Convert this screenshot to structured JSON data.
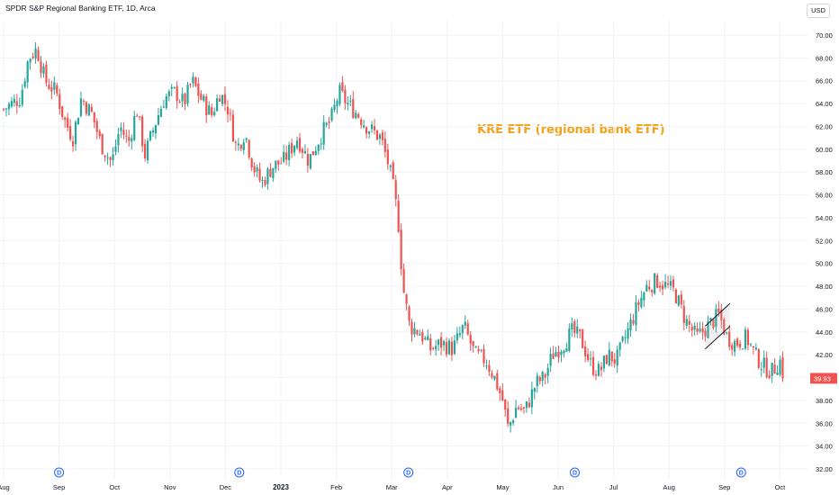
{
  "header": {
    "title": "SPDR S&P Regional Banking ETF, 1D, Arca",
    "currency": "USD"
  },
  "annotation": "KRE ETF (regional bank ETF)",
  "chart_data": {
    "type": "candlestick",
    "title": "SPDR S&P Regional Banking ETF, 1D, Arca",
    "ylim": [
      32,
      71
    ],
    "y_ticks": [
      "32.00",
      "34.00",
      "36.00",
      "38.00",
      "40.00",
      "42.00",
      "44.00",
      "46.00",
      "48.00",
      "50.00",
      "52.00",
      "54.00",
      "56.00",
      "58.00",
      "60.00",
      "62.00",
      "64.00",
      "66.00",
      "68.00",
      "70.00"
    ],
    "x_ticks": [
      {
        "label": "Aug",
        "month": 0,
        "bold": false
      },
      {
        "label": "Sep",
        "month": 1,
        "bold": false
      },
      {
        "label": "Oct",
        "month": 2,
        "bold": false
      },
      {
        "label": "Nov",
        "month": 3,
        "bold": false
      },
      {
        "label": "Dec",
        "month": 4,
        "bold": false
      },
      {
        "label": "2023",
        "month": 5,
        "bold": true
      },
      {
        "label": "Feb",
        "month": 6,
        "bold": false
      },
      {
        "label": "Mar",
        "month": 7,
        "bold": false
      },
      {
        "label": "Apr",
        "month": 8,
        "bold": false
      },
      {
        "label": "May",
        "month": 9,
        "bold": false
      },
      {
        "label": "Jun",
        "month": 10,
        "bold": false
      },
      {
        "label": "Jul",
        "month": 11,
        "bold": false
      },
      {
        "label": "Aug",
        "month": 12,
        "bold": false
      },
      {
        "label": "Sep",
        "month": 13,
        "bold": false
      },
      {
        "label": "Oct",
        "month": 14,
        "bold": false
      }
    ],
    "close_path": [
      {
        "t": 0.0,
        "v": 63.5
      },
      {
        "t": 0.3,
        "v": 64.5
      },
      {
        "t": 0.45,
        "v": 68.0
      },
      {
        "t": 0.6,
        "v": 68.8
      },
      {
        "t": 0.75,
        "v": 66.0
      },
      {
        "t": 0.95,
        "v": 65.0
      },
      {
        "t": 1.1,
        "v": 62.5
      },
      {
        "t": 1.25,
        "v": 61.0
      },
      {
        "t": 1.4,
        "v": 64.5
      },
      {
        "t": 1.6,
        "v": 63.0
      },
      {
        "t": 1.75,
        "v": 60.5
      },
      {
        "t": 1.95,
        "v": 58.8
      },
      {
        "t": 2.1,
        "v": 62.0
      },
      {
        "t": 2.25,
        "v": 60.5
      },
      {
        "t": 2.4,
        "v": 63.5
      },
      {
        "t": 2.55,
        "v": 59.5
      },
      {
        "t": 2.75,
        "v": 62.5
      },
      {
        "t": 2.9,
        "v": 64.5
      },
      {
        "t": 3.1,
        "v": 65.0
      },
      {
        "t": 3.25,
        "v": 64.0
      },
      {
        "t": 3.4,
        "v": 66.0
      },
      {
        "t": 3.55,
        "v": 64.5
      },
      {
        "t": 3.75,
        "v": 63.0
      },
      {
        "t": 3.9,
        "v": 65.0
      },
      {
        "t": 4.05,
        "v": 63.5
      },
      {
        "t": 4.2,
        "v": 60.0
      },
      {
        "t": 4.35,
        "v": 61.5
      },
      {
        "t": 4.5,
        "v": 58.5
      },
      {
        "t": 4.65,
        "v": 57.0
      },
      {
        "t": 4.85,
        "v": 58.5
      },
      {
        "t": 5.05,
        "v": 59.0
      },
      {
        "t": 5.3,
        "v": 61.0
      },
      {
        "t": 5.5,
        "v": 59.0
      },
      {
        "t": 5.75,
        "v": 61.5
      },
      {
        "t": 5.9,
        "v": 62.5
      },
      {
        "t": 6.05,
        "v": 65.0
      },
      {
        "t": 6.2,
        "v": 64.0
      },
      {
        "t": 6.4,
        "v": 63.0
      },
      {
        "t": 6.55,
        "v": 62.0
      },
      {
        "t": 6.8,
        "v": 61.0
      },
      {
        "t": 6.95,
        "v": 58.5
      },
      {
        "t": 7.05,
        "v": 56.0
      },
      {
        "t": 7.12,
        "v": 53.5
      },
      {
        "t": 7.2,
        "v": 48.0
      },
      {
        "t": 7.32,
        "v": 44.5
      },
      {
        "t": 7.5,
        "v": 44.0
      },
      {
        "t": 7.7,
        "v": 42.5
      },
      {
        "t": 7.9,
        "v": 43.0
      },
      {
        "t": 8.1,
        "v": 42.5
      },
      {
        "t": 8.3,
        "v": 44.5
      },
      {
        "t": 8.5,
        "v": 42.0
      },
      {
        "t": 8.7,
        "v": 41.5
      },
      {
        "t": 8.85,
        "v": 40.0
      },
      {
        "t": 9.0,
        "v": 38.0
      },
      {
        "t": 9.1,
        "v": 35.5
      },
      {
        "t": 9.25,
        "v": 37.5
      },
      {
        "t": 9.4,
        "v": 37.0
      },
      {
        "t": 9.6,
        "v": 39.5
      },
      {
        "t": 9.75,
        "v": 40.0
      },
      {
        "t": 9.9,
        "v": 42.0
      },
      {
        "t": 10.1,
        "v": 43.0
      },
      {
        "t": 10.25,
        "v": 44.0
      },
      {
        "t": 10.4,
        "v": 43.5
      },
      {
        "t": 10.6,
        "v": 41.0
      },
      {
        "t": 10.75,
        "v": 40.5
      },
      {
        "t": 10.9,
        "v": 42.0
      },
      {
        "t": 11.05,
        "v": 41.5
      },
      {
        "t": 11.25,
        "v": 44.0
      },
      {
        "t": 11.45,
        "v": 46.5
      },
      {
        "t": 11.6,
        "v": 48.0
      },
      {
        "t": 11.8,
        "v": 48.5
      },
      {
        "t": 11.95,
        "v": 48.0
      },
      {
        "t": 12.1,
        "v": 47.5
      },
      {
        "t": 12.3,
        "v": 45.0
      },
      {
        "t": 12.5,
        "v": 43.5
      },
      {
        "t": 12.7,
        "v": 44.5
      },
      {
        "t": 12.9,
        "v": 45.5
      },
      {
        "t": 13.05,
        "v": 43.5
      },
      {
        "t": 13.2,
        "v": 43.0
      },
      {
        "t": 13.4,
        "v": 43.5
      },
      {
        "t": 13.55,
        "v": 42.0
      },
      {
        "t": 13.7,
        "v": 41.0
      },
      {
        "t": 13.85,
        "v": 40.5
      },
      {
        "t": 14.0,
        "v": 41.5
      },
      {
        "t": 14.05,
        "v": 39.93
      }
    ],
    "last_price": "39.93",
    "dividend_marker": "D",
    "dividends_month": [
      1.0,
      4.25,
      7.3,
      10.3,
      13.3
    ],
    "channel_upper": [
      {
        "t": 12.65,
        "v": 44.5
      },
      {
        "t": 13.1,
        "v": 46.5
      }
    ],
    "channel_lower": [
      {
        "t": 12.65,
        "v": 42.5
      },
      {
        "t": 13.1,
        "v": 44.5
      }
    ],
    "colors": {
      "up": "#26a69a",
      "down": "#ef5350",
      "grid": "#f0f3fa",
      "accent": "#f5a219",
      "dividend": "#2962ff"
    },
    "grid": true
  }
}
